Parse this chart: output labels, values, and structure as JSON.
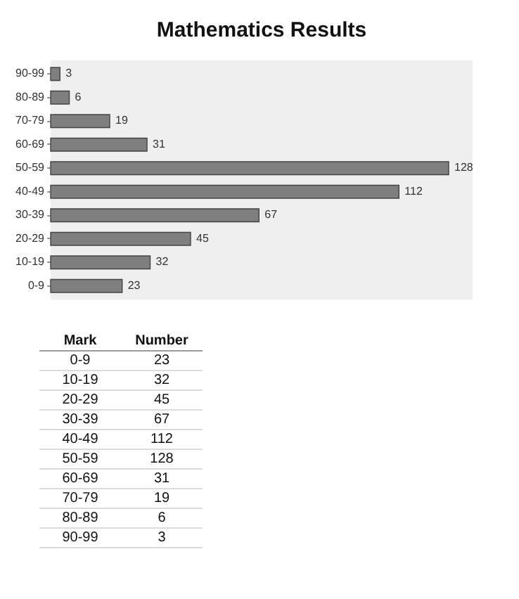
{
  "chart_data": [
    {
      "type": "bar",
      "title": "Mathematics Results",
      "orientation": "horizontal",
      "categories": [
        "90-99",
        "80-89",
        "70-79",
        "60-69",
        "50-59",
        "40-49",
        "30-39",
        "20-29",
        "10-19",
        "0-9"
      ],
      "values": [
        3,
        6,
        19,
        31,
        128,
        112,
        67,
        45,
        32,
        23
      ],
      "color": "#7f7f7f",
      "data_labels": true,
      "grid": false
    },
    {
      "type": "other",
      "annotations": [
        "Mark",
        "Number",
        "0-9",
        "23",
        "10-19",
        "32",
        "20-29",
        "45",
        "30-39",
        "67",
        "40-49",
        "112",
        "50-59",
        "128",
        "60-69",
        "31",
        "70-79",
        "19",
        "80-89",
        "6",
        "90-99",
        "3"
      ]
    }
  ]
}
